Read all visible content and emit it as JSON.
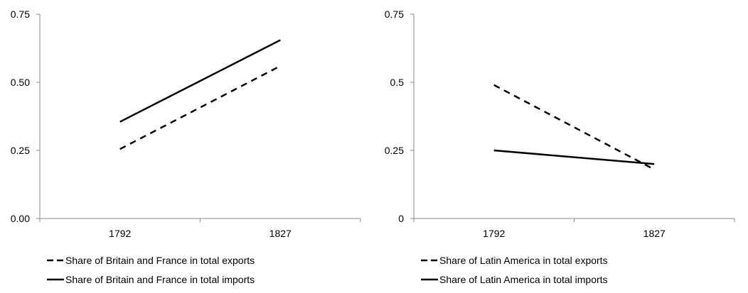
{
  "chart_data": [
    {
      "type": "line",
      "title": "",
      "xlabel": "",
      "ylabel": "",
      "categories": [
        "1792",
        "1827"
      ],
      "ylim": [
        0,
        0.75
      ],
      "yticks": [
        0,
        0.25,
        0.5,
        0.75
      ],
      "ytick_labels": [
        "0.00",
        "0.25",
        "0.50",
        "0.75"
      ],
      "grid": false,
      "legend_position": "bottom-left",
      "series": [
        {
          "name": "Share of Britain and France in total exports",
          "values": [
            0.255,
            0.56
          ],
          "style": "dashed",
          "color": "#000000"
        },
        {
          "name": "Share of Britain and France in total imports",
          "values": [
            0.355,
            0.655
          ],
          "style": "solid",
          "color": "#000000"
        }
      ]
    },
    {
      "type": "line",
      "title": "",
      "xlabel": "",
      "ylabel": "",
      "categories": [
        "1792",
        "1827"
      ],
      "ylim": [
        0,
        0.75
      ],
      "yticks": [
        0,
        0.25,
        0.5,
        0.75
      ],
      "ytick_labels": [
        "0",
        "0.25",
        "0.5",
        "0.75"
      ],
      "grid": false,
      "legend_position": "bottom-left",
      "series": [
        {
          "name": "Share of Latin America in total exports",
          "values": [
            0.49,
            0.18
          ],
          "style": "dashed",
          "color": "#000000"
        },
        {
          "name": "Share of Latin America in total imports",
          "values": [
            0.25,
            0.2
          ],
          "style": "solid",
          "color": "#000000"
        }
      ]
    }
  ]
}
